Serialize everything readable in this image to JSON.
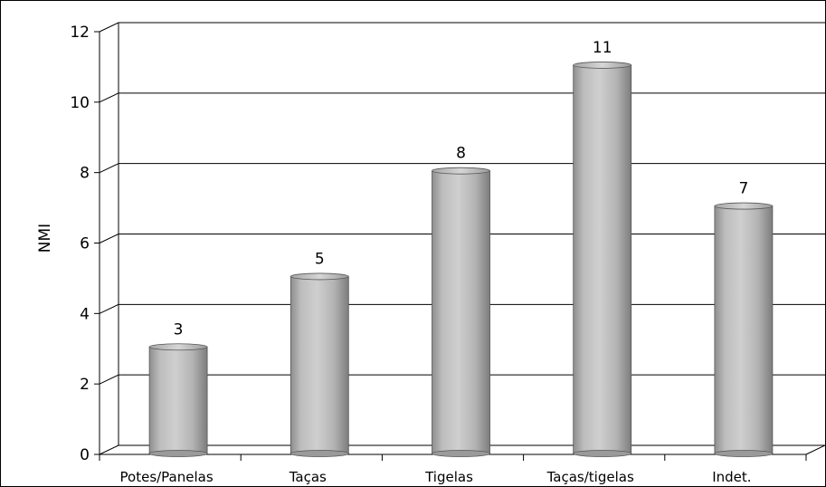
{
  "chart_data": {
    "type": "bar",
    "categories": [
      "Potes/Panelas",
      "Taças",
      "Tigelas",
      "Taças/tigelas",
      "Indet."
    ],
    "values": [
      3,
      5,
      8,
      11,
      7
    ],
    "data_labels": [
      "3",
      "5",
      "8",
      "11",
      "7"
    ],
    "title": "",
    "xlabel": "",
    "ylabel": "NMI",
    "ylim": [
      0,
      12
    ],
    "yticks": [
      "0",
      "2",
      "4",
      "6",
      "8",
      "10",
      "12"
    ],
    "grid": true,
    "legend": "none",
    "bar_style": "3d-cylinder",
    "bar_color": "#b8b8b8"
  }
}
